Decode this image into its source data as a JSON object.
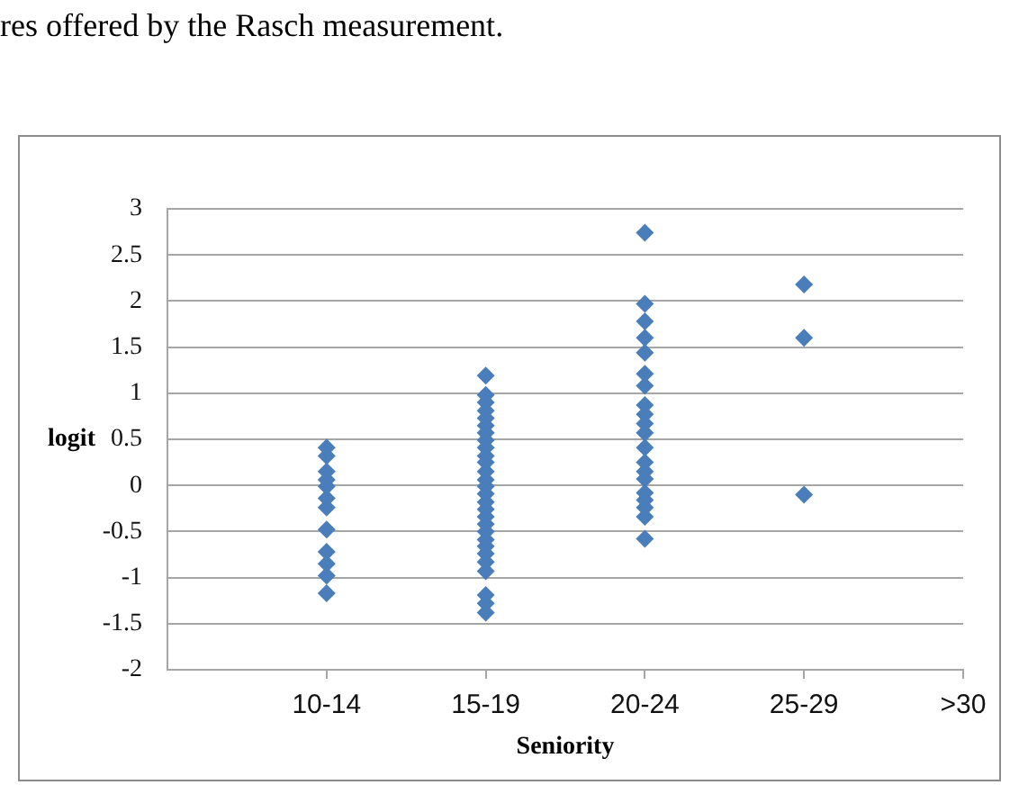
{
  "chart_data": {
    "type": "scatter",
    "annotations": [
      "res offered by the Rasch measurement."
    ],
    "xlabel": "Seniority",
    "ylabel": "logit",
    "categories": [
      null,
      "10-14",
      "15-19",
      "20-24",
      "25-29",
      ">30"
    ],
    "series": [
      {
        "color": "#4a7ebb",
        "x": [
          "10-14",
          "10-14",
          "10-14",
          "10-14",
          "10-14",
          "10-14",
          "10-14",
          "10-14",
          "10-14",
          "10-14",
          "10-14",
          "10-14",
          "15-19",
          "15-19",
          "15-19",
          "15-19",
          "15-19",
          "15-19",
          "15-19",
          "15-19",
          "15-19",
          "15-19",
          "15-19",
          "15-19",
          "15-19",
          "15-19",
          "15-19",
          "15-19",
          "15-19",
          "15-19",
          "15-19",
          "15-19",
          "15-19",
          "15-19",
          "15-19",
          "15-19",
          "15-19",
          "15-19",
          "15-19",
          "15-19",
          "20-24",
          "20-24",
          "20-24",
          "20-24",
          "20-24",
          "20-24",
          "20-24",
          "20-24",
          "20-24",
          "20-24",
          "20-24",
          "20-24",
          "20-24",
          "20-24",
          "20-24",
          "20-24",
          "20-24",
          "20-24",
          "20-24",
          "20-24",
          "25-29",
          "25-29",
          "25-29"
        ],
        "values": [
          0.41,
          0.32,
          0.15,
          0.06,
          -0.01,
          -0.14,
          -0.24,
          -0.48,
          -0.72,
          -0.85,
          -0.98,
          -1.17,
          1.19,
          0.98,
          0.9,
          0.81,
          0.73,
          0.65,
          0.57,
          0.49,
          0.41,
          0.32,
          0.25,
          0.15,
          0.06,
          -0.01,
          -0.09,
          -0.18,
          -0.26,
          -0.34,
          -0.42,
          -0.5,
          -0.59,
          -0.66,
          -0.74,
          -0.83,
          -0.93,
          -1.19,
          -1.28,
          -1.38,
          2.74,
          1.97,
          1.78,
          1.6,
          1.44,
          1.21,
          1.08,
          0.87,
          0.77,
          0.67,
          0.57,
          0.41,
          0.25,
          0.15,
          0.07,
          -0.08,
          -0.16,
          -0.24,
          -0.34,
          -0.58,
          2.18,
          1.6,
          -0.1
        ]
      }
    ],
    "marker": "diamond",
    "ylim": [
      -2,
      3
    ],
    "yticks": [
      -2,
      -1.5,
      -1,
      -0.5,
      0,
      0.5,
      1,
      1.5,
      2,
      2.5,
      3
    ],
    "grid": "y"
  }
}
